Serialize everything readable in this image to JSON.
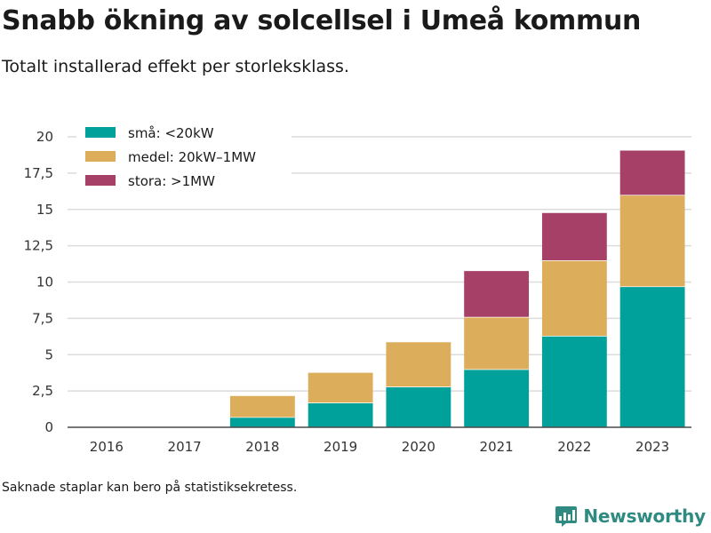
{
  "header": {
    "title": "Snabb ökning av solcellsel i Umeå kommun",
    "subtitle": "Totalt installerad effekt per storleksklass."
  },
  "footer": {
    "note": "Saknade staplar kan bero på statistiksekretess.",
    "brand": "Newsworthy"
  },
  "chart_data": {
    "type": "bar",
    "stacked": true,
    "categories": [
      "2016",
      "2017",
      "2018",
      "2019",
      "2020",
      "2021",
      "2022",
      "2023"
    ],
    "series": [
      {
        "name": "små: <20kW",
        "color": "#00a19a",
        "values": [
          null,
          null,
          0.7,
          1.7,
          2.8,
          4.0,
          6.3,
          9.7
        ]
      },
      {
        "name": "medel: 20kW–1MW",
        "color": "#dcae5c",
        "values": [
          null,
          null,
          1.5,
          2.1,
          3.1,
          3.6,
          5.2,
          6.3
        ]
      },
      {
        "name": "stora: >1MW",
        "color": "#a64067",
        "values": [
          null,
          null,
          null,
          null,
          null,
          3.2,
          3.3,
          3.1
        ]
      }
    ],
    "yticks": [
      "0",
      "2,5",
      "5",
      "7,5",
      "10",
      "12,5",
      "15",
      "17,5",
      "20"
    ],
    "ylim": [
      0,
      20
    ],
    "grid": true,
    "legend_position": "top-left"
  }
}
